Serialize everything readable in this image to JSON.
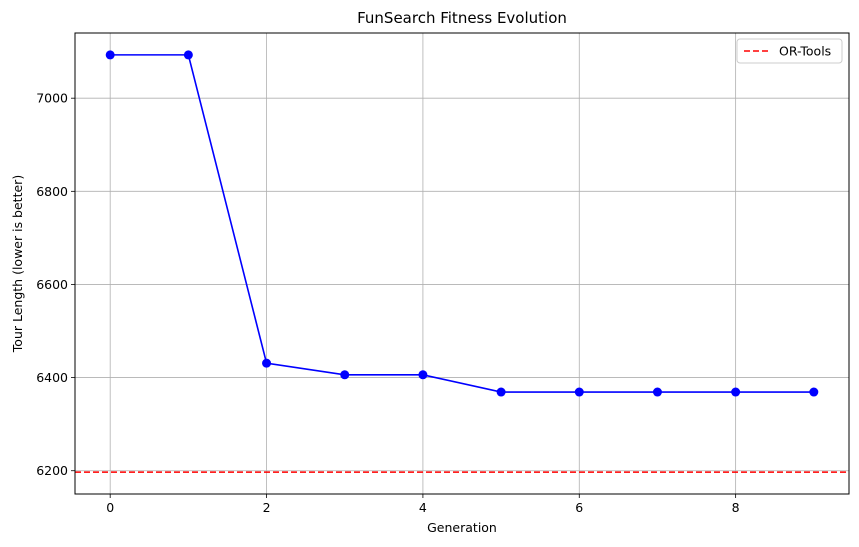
{
  "chart_data": {
    "type": "line",
    "title": "FunSearch Fitness Evolution",
    "xlabel": "Generation",
    "ylabel": "Tour Length (lower is better)",
    "x": [
      0,
      1,
      2,
      3,
      4,
      5,
      6,
      7,
      8,
      9
    ],
    "series": [
      {
        "values": [
          7093,
          7093,
          6431,
          6406,
          6406,
          6369,
          6369,
          6369,
          6369,
          6369
        ],
        "color": "#0000ff",
        "marker": "circle"
      }
    ],
    "reference_lines": [
      {
        "name": "OR-Tools",
        "y": 6197,
        "color": "#ff0000",
        "style": "dashed"
      }
    ],
    "xlim": [
      -0.45,
      9.45
    ],
    "ylim": [
      6150,
      7140
    ],
    "xticks": [
      "0",
      "2",
      "4",
      "6",
      "8"
    ],
    "yticks": [
      "6200",
      "6400",
      "6600",
      "6800",
      "7000"
    ],
    "grid": true,
    "legend": {
      "position": "top-right",
      "entries": [
        "OR-Tools"
      ]
    }
  }
}
